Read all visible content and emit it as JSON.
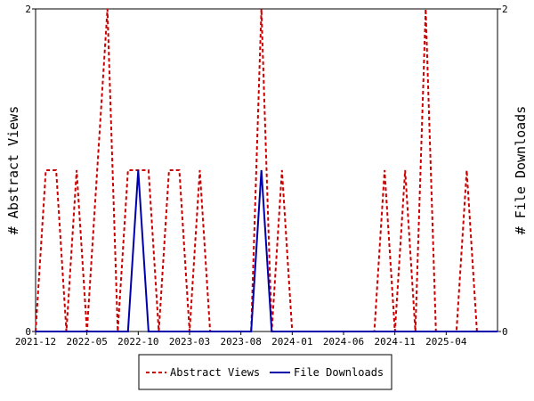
{
  "chart_data": {
    "type": "line",
    "ylabel_left": "# Abstract Views",
    "ylabel_right": "# File Downloads",
    "y_left_ticks": [
      "0",
      "2"
    ],
    "y_right_ticks": [
      "0",
      "2"
    ],
    "ylim": [
      0,
      2
    ],
    "x_tick_labels": [
      "2021-12",
      "2022-05",
      "2022-10",
      "2023-03",
      "2023-08",
      "2024-01",
      "2024-06",
      "2024-11",
      "2025-04"
    ],
    "x_tick_dates": [
      "2021-12",
      "2022-05",
      "2022-10",
      "2023-03",
      "2023-08",
      "2024-01",
      "2024-06",
      "2024-11",
      "2025-04"
    ],
    "xlim": [
      "2021-12",
      "2025-09"
    ],
    "grid": false,
    "legend_position": "bottom",
    "colors": {
      "abstract_views": "#cc0000",
      "file_downloads": "#0000aa"
    },
    "series": [
      {
        "name": "Abstract Views",
        "style": "dashed",
        "x": [
          "2021-12",
          "2022-01",
          "2022-02",
          "2022-03",
          "2022-04",
          "2022-05",
          "2022-06",
          "2022-07",
          "2022-08",
          "2022-09",
          "2022-10",
          "2022-11",
          "2022-12",
          "2023-01",
          "2023-02",
          "2023-03",
          "2023-04",
          "2023-05",
          "2023-06",
          "2023-07",
          "2023-08",
          "2023-09",
          "2023-10",
          "2023-11",
          "2023-12",
          "2024-01",
          "2024-02",
          "2024-03",
          "2024-04",
          "2024-05",
          "2024-06",
          "2024-07",
          "2024-08",
          "2024-09",
          "2024-10",
          "2024-11",
          "2024-12",
          "2025-01",
          "2025-02",
          "2025-03",
          "2025-04",
          "2025-05",
          "2025-06",
          "2025-07",
          "2025-08",
          "2025-09"
        ],
        "values": [
          0,
          1,
          1,
          0,
          1,
          0,
          1,
          2,
          0,
          1,
          1,
          1,
          0,
          1,
          1,
          0,
          1,
          0,
          0,
          0,
          0,
          0,
          2,
          0,
          1,
          0,
          0,
          0,
          0,
          0,
          0,
          0,
          0,
          0,
          1,
          0,
          1,
          0,
          2,
          0,
          0,
          0,
          1,
          0,
          0,
          0
        ]
      },
      {
        "name": "File Downloads",
        "style": "solid",
        "x": [
          "2021-12",
          "2022-01",
          "2022-02",
          "2022-03",
          "2022-04",
          "2022-05",
          "2022-06",
          "2022-07",
          "2022-08",
          "2022-09",
          "2022-10",
          "2022-11",
          "2022-12",
          "2023-01",
          "2023-02",
          "2023-03",
          "2023-04",
          "2023-05",
          "2023-06",
          "2023-07",
          "2023-08",
          "2023-09",
          "2023-10",
          "2023-11",
          "2023-12",
          "2024-01",
          "2024-02",
          "2024-03",
          "2024-04",
          "2024-05",
          "2024-06",
          "2024-07",
          "2024-08",
          "2024-09",
          "2024-10",
          "2024-11",
          "2024-12",
          "2025-01",
          "2025-02",
          "2025-03",
          "2025-04",
          "2025-05",
          "2025-06",
          "2025-07",
          "2025-08",
          "2025-09"
        ],
        "values": [
          0,
          0,
          0,
          0,
          0,
          0,
          0,
          0,
          0,
          0,
          1,
          0,
          0,
          0,
          0,
          0,
          0,
          0,
          0,
          0,
          0,
          0,
          1,
          0,
          0,
          0,
          0,
          0,
          0,
          0,
          0,
          0,
          0,
          0,
          0,
          0,
          0,
          0,
          0,
          0,
          0,
          0,
          0,
          0,
          0,
          0
        ]
      }
    ]
  }
}
